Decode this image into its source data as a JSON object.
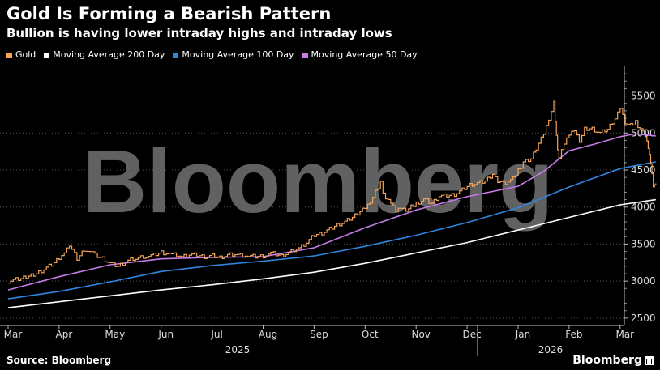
{
  "title": "Gold Is Forming a Bearish Pattern",
  "subtitle": "Bullion is having lower intraday highs and intraday lows",
  "source": "Source: Bloomberg",
  "brand": "Bloomberg",
  "watermark": "Bloomberg",
  "chart_data": {
    "type": "line",
    "x_ticks": [
      "Mar",
      "Apr",
      "May",
      "Jun",
      "Jul",
      "Aug",
      "Sep",
      "Oct",
      "Nov",
      "Dec",
      "Jan",
      "Feb",
      "Mar"
    ],
    "year_labels": [
      "2025",
      "2026"
    ],
    "y_ticks": [
      2500,
      3000,
      3500,
      4000,
      4500,
      5000,
      5500
    ],
    "ylim": [
      2400,
      5900
    ],
    "y_axis_position": "right",
    "grid": "horizontal dotted",
    "legend": "top",
    "x_domain_months": [
      0,
      12.7
    ],
    "series": [
      {
        "name": "Gold",
        "color": "#f5a45a",
        "points": [
          [
            0,
            3000
          ],
          [
            0.3,
            3040
          ],
          [
            0.6,
            3120
          ],
          [
            0.9,
            3240
          ],
          [
            1.1,
            3380
          ],
          [
            1.2,
            3480
          ],
          [
            1.35,
            3300
          ],
          [
            1.5,
            3430
          ],
          [
            1.7,
            3350
          ],
          [
            1.85,
            3310
          ],
          [
            2.0,
            3240
          ],
          [
            2.15,
            3200
          ],
          [
            2.3,
            3260
          ],
          [
            2.5,
            3310
          ],
          [
            2.7,
            3340
          ],
          [
            2.85,
            3350
          ],
          [
            3.0,
            3390
          ],
          [
            3.2,
            3360
          ],
          [
            3.4,
            3330
          ],
          [
            3.55,
            3360
          ],
          [
            3.7,
            3350
          ],
          [
            3.85,
            3330
          ],
          [
            4.0,
            3340
          ],
          [
            4.15,
            3320
          ],
          [
            4.3,
            3350
          ],
          [
            4.5,
            3360
          ],
          [
            4.7,
            3340
          ],
          [
            4.85,
            3330
          ],
          [
            5.0,
            3340
          ],
          [
            5.2,
            3370
          ],
          [
            5.35,
            3340
          ],
          [
            5.5,
            3380
          ],
          [
            5.7,
            3450
          ],
          [
            5.85,
            3520
          ],
          [
            6.0,
            3620
          ],
          [
            6.15,
            3650
          ],
          [
            6.3,
            3700
          ],
          [
            6.45,
            3760
          ],
          [
            6.6,
            3800
          ],
          [
            6.75,
            3860
          ],
          [
            6.9,
            3950
          ],
          [
            7.0,
            4000
          ],
          [
            7.1,
            4080
          ],
          [
            7.2,
            4200
          ],
          [
            7.3,
            4330
          ],
          [
            7.4,
            4100
          ],
          [
            7.5,
            4050
          ],
          [
            7.6,
            3950
          ],
          [
            7.7,
            4000
          ],
          [
            7.8,
            3970
          ],
          [
            7.9,
            4000
          ],
          [
            8.0,
            4050
          ],
          [
            8.15,
            4100
          ],
          [
            8.3,
            4050
          ],
          [
            8.45,
            4150
          ],
          [
            8.6,
            4150
          ],
          [
            8.75,
            4170
          ],
          [
            8.9,
            4230
          ],
          [
            9.05,
            4300
          ],
          [
            9.2,
            4320
          ],
          [
            9.35,
            4350
          ],
          [
            9.5,
            4450
          ],
          [
            9.6,
            4350
          ],
          [
            9.75,
            4330
          ],
          [
            9.9,
            4380
          ],
          [
            10.0,
            4500
          ],
          [
            10.1,
            4600
          ],
          [
            10.25,
            4650
          ],
          [
            10.4,
            4870
          ],
          [
            10.5,
            5000
          ],
          [
            10.6,
            5200
          ],
          [
            10.7,
            5400
          ],
          [
            10.75,
            4950
          ],
          [
            10.8,
            4650
          ],
          [
            10.9,
            4850
          ],
          [
            11.0,
            4980
          ],
          [
            11.1,
            5050
          ],
          [
            11.2,
            4900
          ],
          [
            11.3,
            5050
          ],
          [
            11.45,
            5060
          ],
          [
            11.6,
            5000
          ],
          [
            11.75,
            5050
          ],
          [
            11.9,
            5200
          ],
          [
            12.0,
            5350
          ],
          [
            12.1,
            5150
          ],
          [
            12.2,
            5100
          ],
          [
            12.3,
            5150
          ],
          [
            12.4,
            5050
          ],
          [
            12.5,
            4950
          ],
          [
            12.55,
            4800
          ],
          [
            12.6,
            4600
          ],
          [
            12.65,
            4300
          ],
          [
            12.7,
            4320
          ]
        ]
      },
      {
        "name": "Moving Average 200 Day",
        "color": "#ffffff",
        "points": [
          [
            0,
            2640
          ],
          [
            1,
            2720
          ],
          [
            2,
            2800
          ],
          [
            3,
            2880
          ],
          [
            4,
            2950
          ],
          [
            5,
            3030
          ],
          [
            6,
            3120
          ],
          [
            7,
            3240
          ],
          [
            8,
            3380
          ],
          [
            9,
            3520
          ],
          [
            10,
            3690
          ],
          [
            11,
            3860
          ],
          [
            12,
            4030
          ],
          [
            12.7,
            4100
          ]
        ]
      },
      {
        "name": "Moving Average 100 Day",
        "color": "#2f86e0",
        "points": [
          [
            0,
            2760
          ],
          [
            1,
            2860
          ],
          [
            2,
            2990
          ],
          [
            3,
            3130
          ],
          [
            4,
            3210
          ],
          [
            5,
            3270
          ],
          [
            6,
            3340
          ],
          [
            7,
            3470
          ],
          [
            8,
            3620
          ],
          [
            9,
            3790
          ],
          [
            10,
            3990
          ],
          [
            11,
            4270
          ],
          [
            12,
            4520
          ],
          [
            12.7,
            4610
          ]
        ]
      },
      {
        "name": "Moving Average 50 Day",
        "color": "#c77be8",
        "points": [
          [
            0,
            2880
          ],
          [
            1,
            3060
          ],
          [
            2,
            3220
          ],
          [
            3,
            3300
          ],
          [
            4,
            3320
          ],
          [
            5,
            3330
          ],
          [
            6,
            3450
          ],
          [
            7,
            3720
          ],
          [
            8,
            3960
          ],
          [
            9,
            4140
          ],
          [
            10,
            4280
          ],
          [
            10.5,
            4480
          ],
          [
            11,
            4760
          ],
          [
            11.5,
            4850
          ],
          [
            12,
            4950
          ],
          [
            12.3,
            4990
          ],
          [
            12.7,
            4960
          ]
        ]
      }
    ]
  }
}
